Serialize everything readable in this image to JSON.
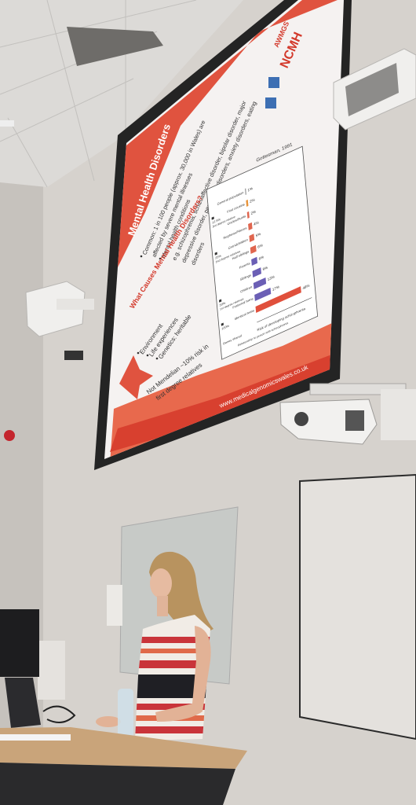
{
  "slide": {
    "title": "Mental Health Disorders",
    "bullets": [
      [
        "Common: 1 in 100 people (approx. 30,000 in Wales) are",
        "affected by severe mental illnesses"
      ],
      [
        "Mental health conditions"
      ],
      [
        "e.g. schizophrenia, schizoaffective disorder, bipolar disorder, major",
        "depressive disorder, personality disorders, anxiety disorders, eating",
        "disorders"
      ]
    ],
    "subtitle": "What Causes Mental Health Disorders?",
    "causes": [
      "Environment",
      "Life experiences",
      "Genetics: heritable"
    ],
    "note": [
      "Not Mendelian ~10% risk in",
      "first degree relatives"
    ],
    "url": "www.medicalgenomicswales.co.uk",
    "logos": [
      "AWMGS",
      "NCMH"
    ],
    "chart": {
      "type": "bar",
      "source": "Gottesman, 1991",
      "x_label": "Risk of developing schizophrenia",
      "y_label": "Relationship to person with schizophrenia",
      "categories": [
        "General population",
        "First cousins",
        "Uncles/Aunts",
        "Nephews/Nieces",
        "Grandchildren",
        "Half siblings",
        "Parents",
        "Siblings",
        "Children",
        "Fraternal twins",
        "Identical twins"
      ],
      "values": [
        1,
        2,
        2,
        4,
        5,
        6,
        6,
        9,
        13,
        17,
        48
      ],
      "value_labels": [
        "1%",
        "2%",
        "2%",
        "4%",
        "5%",
        "6%",
        "6%",
        "9%",
        "13%",
        "17%",
        "48%"
      ],
      "colors": [
        "#9b9b9b",
        "#e8943a",
        "#e0664f",
        "#e0664f",
        "#e0664f",
        "#e0664f",
        "#6b5fb5",
        "#6b5fb5",
        "#6b5fb5",
        "#6b5fb5",
        "#e0503c"
      ],
      "groups": [
        {
          "share": "12.5%",
          "label": "3rd degree relative"
        },
        {
          "share": "25%",
          "label": "2nd degree relatives"
        },
        {
          "share": "50%",
          "label": "1st degree relatives"
        },
        {
          "share": "100%"
        }
      ],
      "genes_label": "Genes shared"
    }
  }
}
